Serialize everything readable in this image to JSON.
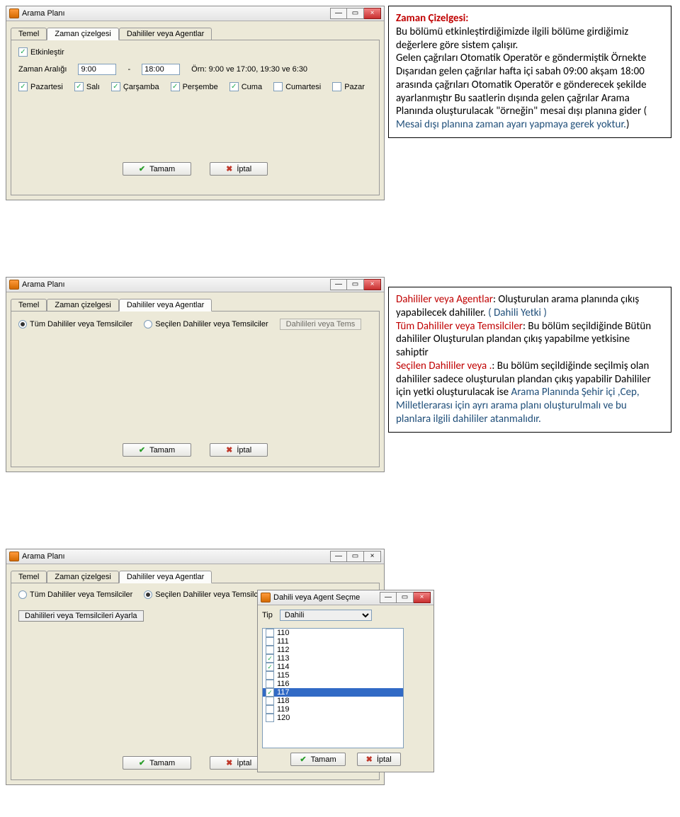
{
  "colors": {
    "red": "#c00000",
    "blue": "#1f4e79",
    "panel": "#ece9d8"
  },
  "windowTitle": "Arama Planı",
  "winButtons": {
    "min": "—",
    "max": "▭",
    "close": "×"
  },
  "tabs": {
    "temel": "Temel",
    "zaman": "Zaman çizelgesi",
    "dahililer": "Dahililer veya Agentlar"
  },
  "win1": {
    "enableLabel": "Etkinleştir",
    "rangeLabel": "Zaman Aralığı",
    "timeFrom": "9:00",
    "dash": "-",
    "timeTo": "18:00",
    "example": "Örn: 9:00 ve 17:00, 19:30 ve 6:30",
    "days": {
      "pazartesi": "Pazartesi",
      "sali": "Salı",
      "carsamba": "Çarşamba",
      "persembe": "Perşembe",
      "cuma": "Cuma",
      "cumartesi": "Cumartesi",
      "pazar": "Pazar"
    }
  },
  "callout1": {
    "title": "Zaman Çizelgesi:",
    "p1": "Bu bölümü etkinleştirdiğimizde ilgili bölüme girdiğimiz değerlere göre sistem çalışır.",
    "p2a": "Gelen çağrıları Otomatik Operatör e göndermiştik Örnekte Dışarıdan gelen çağrılar hafta içi sabah 09:00 akşam 18:00 arasında çağrıları Otomatik Operatör e  gönderecek şekilde ayarlanmıştır Bu saatlerin dışında gelen çağrılar Arama Planında oluşturulacak \"örneğin\" mesai dışı planına gider ( ",
    "p2b": "Mesai dışı planına zaman ayarı yapmaya gerek yoktur.",
    "p2c": ")"
  },
  "win2": {
    "optAll": "Tüm Dahililer veya Temsilciler",
    "optSel": "Seçilen Dahililer veya Temsilciler",
    "btnSet": "Dahilileri veya Tems"
  },
  "callout2": {
    "t1": "Dahililer veya Agentlar",
    "p1": ": Oluşturulan arama planında çıkış yapabilecek dahililer. ",
    "t2": "( Dahili Yetki )",
    "t3": "Tüm Dahililer veya Temsilciler",
    "p2": ": Bu bölüm seçildiğinde Bütün dahililer Oluşturulan plandan çıkış yapabilme yetkisine sahiptir",
    "t4": "Seçilen Dahililer veya .",
    "p3": ": Bu bölüm seçildiğinde seçilmiş olan dahililer sadece oluşturulan plandan çıkış yapabilir Dahililer için yetki oluşturulacak ise  ",
    "t5": "Arama Planında Şehir içi ,Cep, Milletlerarası için ayrı arama planı oluşturulmalı ve bu planlara ilgili dahililer atanmalıdır."
  },
  "win3": {
    "btnSet": "Dahilileri veya Temsilcileri Ayarla"
  },
  "dlg3": {
    "title": "Dahili veya Agent Seçme",
    "tipLabel": "Tip",
    "tipValue": "Dahili",
    "items": [
      {
        "label": "110",
        "checked": false,
        "sel": false
      },
      {
        "label": "111",
        "checked": false,
        "sel": false
      },
      {
        "label": "112",
        "checked": false,
        "sel": false
      },
      {
        "label": "113",
        "checked": true,
        "sel": false
      },
      {
        "label": "114",
        "checked": true,
        "sel": false
      },
      {
        "label": "115",
        "checked": false,
        "sel": false
      },
      {
        "label": "116",
        "checked": false,
        "sel": false
      },
      {
        "label": "117",
        "checked": true,
        "sel": true
      },
      {
        "label": "118",
        "checked": false,
        "sel": false
      },
      {
        "label": "119",
        "checked": false,
        "sel": false
      },
      {
        "label": "120",
        "checked": false,
        "sel": false
      }
    ]
  },
  "buttons": {
    "ok": "Tamam",
    "cancel": "İptal"
  }
}
